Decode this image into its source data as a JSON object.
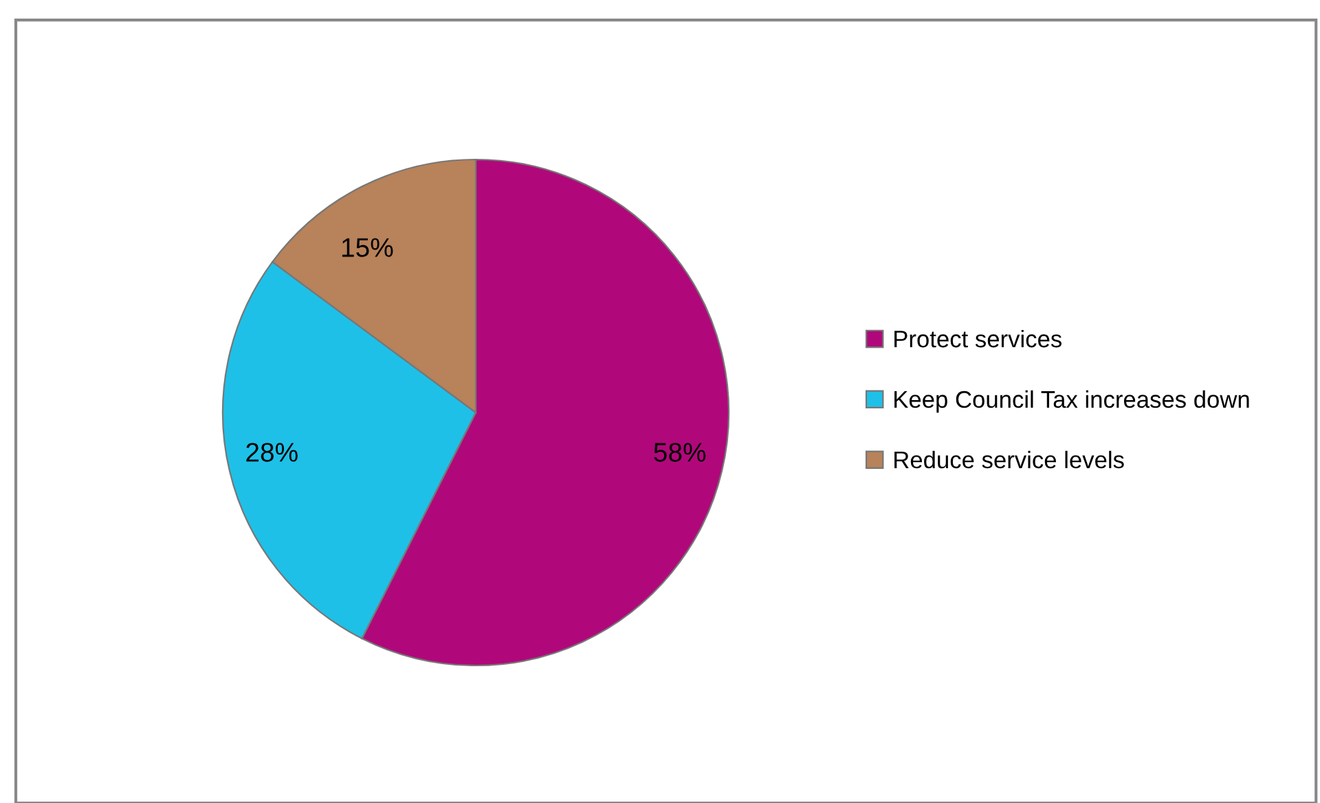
{
  "chart_data": {
    "type": "pie",
    "categories": [
      "Protect services",
      "Keep Council Tax increases down",
      "Reduce service levels"
    ],
    "values": [
      58,
      28,
      15
    ],
    "colors": [
      "#b0087a",
      "#1ec0e8",
      "#b8825a"
    ],
    "value_labels": [
      "58%",
      "28%",
      "15%"
    ],
    "legend": "right"
  }
}
